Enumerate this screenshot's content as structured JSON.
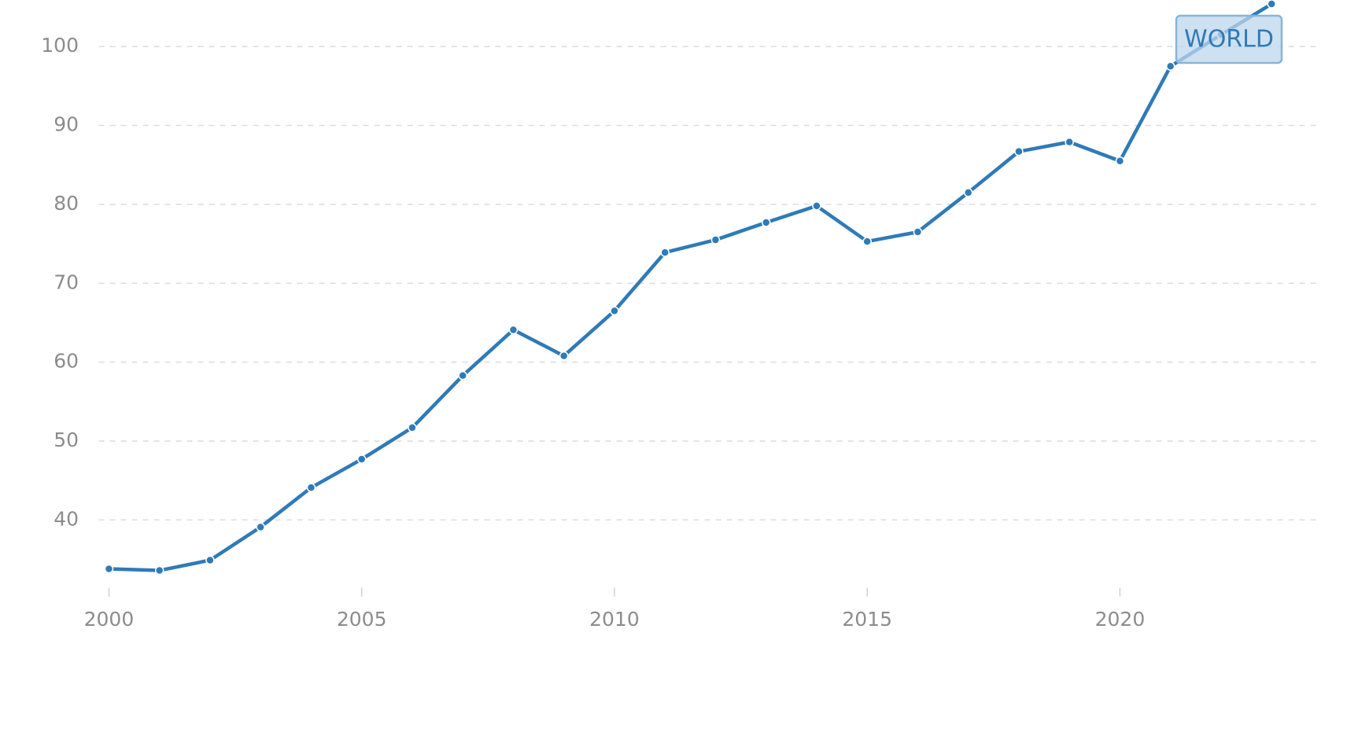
{
  "chart_data": {
    "type": "line",
    "x": [
      2000,
      2001,
      2002,
      2003,
      2004,
      2005,
      2006,
      2007,
      2008,
      2009,
      2010,
      2011,
      2012,
      2013,
      2014,
      2015,
      2016,
      2017,
      2018,
      2019,
      2020,
      2021,
      2022,
      2023
    ],
    "series": [
      {
        "name": "WORLD",
        "color": "#2f7ab8",
        "values": [
          33.8,
          33.6,
          34.9,
          39.1,
          44.1,
          47.7,
          51.7,
          58.3,
          64.1,
          60.8,
          66.5,
          73.9,
          75.5,
          77.7,
          79.8,
          75.3,
          76.5,
          81.5,
          86.7,
          87.9,
          85.5,
          97.5,
          101.5,
          105.4
        ]
      }
    ],
    "xlim": [
      1999.8,
      2023.9
    ],
    "xticks": [
      2000,
      2005,
      2010,
      2015,
      2020
    ],
    "ylim": [
      31.4,
      105.9
    ],
    "yticks": [
      40,
      50,
      60,
      70,
      80,
      90,
      100
    ],
    "grid": true
  }
}
